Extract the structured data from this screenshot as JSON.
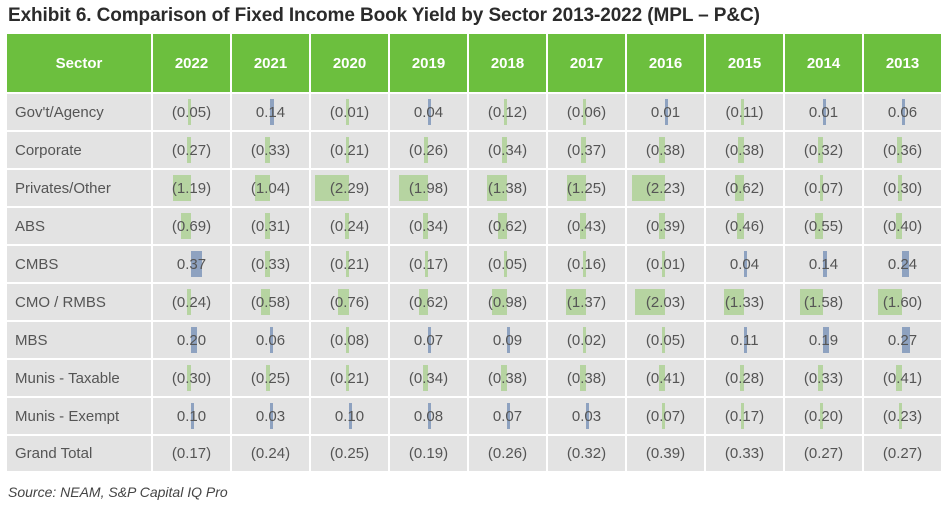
{
  "title": "Exhibit 6. Comparison of Fixed Income Book Yield by Sector 2013-2022 (MPL – P&C)",
  "source": "Source: NEAM, S&P Capital IQ Pro",
  "colors": {
    "header": "#6cbf3e",
    "negative_bar": "#a9d08e",
    "positive_bar": "#8ea2c0",
    "cell": "#e3e3e3"
  },
  "chart_data": {
    "type": "table",
    "title": "Exhibit 6. Comparison of Fixed Income Book Yield by Sector 2013-2022 (MPL – P&C)",
    "header_label": "Sector",
    "years": [
      "2022",
      "2021",
      "2020",
      "2019",
      "2018",
      "2017",
      "2016",
      "2015",
      "2014",
      "2013"
    ],
    "scale_max": 2.29,
    "rows": [
      {
        "sector": "Gov't/Agency",
        "values": [
          -0.05,
          0.14,
          -0.01,
          0.04,
          -0.12,
          -0.06,
          0.01,
          -0.11,
          0.01,
          0.06
        ],
        "labels": [
          "(0.05)",
          "0.14",
          "(0.01)",
          "0.04",
          "(0.12)",
          "(0.06)",
          "0.01",
          "(0.11)",
          "0.01",
          "0.06"
        ]
      },
      {
        "sector": "Corporate",
        "values": [
          -0.27,
          -0.33,
          -0.21,
          -0.26,
          -0.34,
          -0.37,
          -0.38,
          -0.38,
          -0.32,
          -0.36
        ],
        "labels": [
          "(0.27)",
          "(0.33)",
          "(0.21)",
          "(0.26)",
          "(0.34)",
          "(0.37)",
          "(0.38)",
          "(0.38)",
          "(0.32)",
          "(0.36)"
        ]
      },
      {
        "sector": "Privates/Other",
        "values": [
          -1.19,
          -1.04,
          -2.29,
          -1.98,
          -1.38,
          -1.25,
          -2.23,
          -0.62,
          -0.07,
          -0.3
        ],
        "labels": [
          "(1.19)",
          "(1.04)",
          "(2.29)",
          "(1.98)",
          "(1.38)",
          "(1.25)",
          "(2.23)",
          "(0.62)",
          "(0.07)",
          "(0.30)"
        ]
      },
      {
        "sector": "ABS",
        "values": [
          -0.69,
          -0.31,
          -0.24,
          -0.34,
          -0.62,
          -0.43,
          -0.39,
          -0.46,
          -0.55,
          -0.4
        ],
        "labels": [
          "(0.69)",
          "(0.31)",
          "(0.24)",
          "(0.34)",
          "(0.62)",
          "(0.43)",
          "(0.39)",
          "(0.46)",
          "(0.55)",
          "(0.40)"
        ]
      },
      {
        "sector": "CMBS",
        "values": [
          0.37,
          -0.33,
          -0.21,
          -0.17,
          -0.05,
          -0.16,
          -0.01,
          0.04,
          0.14,
          0.24
        ],
        "labels": [
          "0.37",
          "(0.33)",
          "(0.21)",
          "(0.17)",
          "(0.05)",
          "(0.16)",
          "(0.01)",
          "0.04",
          "0.14",
          "0.24"
        ]
      },
      {
        "sector": "CMO / RMBS",
        "values": [
          -0.24,
          -0.58,
          -0.76,
          -0.62,
          -0.98,
          -1.37,
          -2.03,
          -1.33,
          -1.58,
          -1.6
        ],
        "labels": [
          "(0.24)",
          "(0.58)",
          "(0.76)",
          "(0.62)",
          "(0.98)",
          "(1.37)",
          "(2.03)",
          "(1.33)",
          "(1.58)",
          "(1.60)"
        ]
      },
      {
        "sector": "MBS",
        "values": [
          0.2,
          0.06,
          -0.08,
          0.07,
          0.09,
          -0.02,
          -0.05,
          0.11,
          0.19,
          0.27
        ],
        "labels": [
          "0.20",
          "0.06",
          "(0.08)",
          "0.07",
          "0.09",
          "(0.02)",
          "(0.05)",
          "0.11",
          "0.19",
          "0.27"
        ]
      },
      {
        "sector": "Munis - Taxable",
        "values": [
          -0.3,
          -0.25,
          -0.21,
          -0.34,
          -0.38,
          -0.38,
          -0.41,
          -0.28,
          -0.33,
          -0.41
        ],
        "labels": [
          "(0.30)",
          "(0.25)",
          "(0.21)",
          "(0.34)",
          "(0.38)",
          "(0.38)",
          "(0.41)",
          "(0.28)",
          "(0.33)",
          "(0.41)"
        ]
      },
      {
        "sector": "Munis - Exempt",
        "values": [
          0.1,
          0.03,
          0.1,
          0.08,
          0.07,
          0.03,
          -0.07,
          -0.17,
          -0.2,
          -0.23
        ],
        "labels": [
          "0.10",
          "0.03",
          "0.10",
          "0.08",
          "0.07",
          "0.03",
          "(0.07)",
          "(0.17)",
          "(0.20)",
          "(0.23)"
        ]
      },
      {
        "sector": "Grand Total",
        "values": [
          -0.17,
          -0.24,
          -0.25,
          -0.19,
          -0.26,
          -0.32,
          -0.39,
          -0.33,
          -0.27,
          -0.27
        ],
        "labels": [
          "(0.17)",
          "(0.24)",
          "(0.25)",
          "(0.19)",
          "(0.26)",
          "(0.32)",
          "(0.39)",
          "(0.33)",
          "(0.27)",
          "(0.27)"
        ],
        "no_bars": true
      }
    ]
  }
}
